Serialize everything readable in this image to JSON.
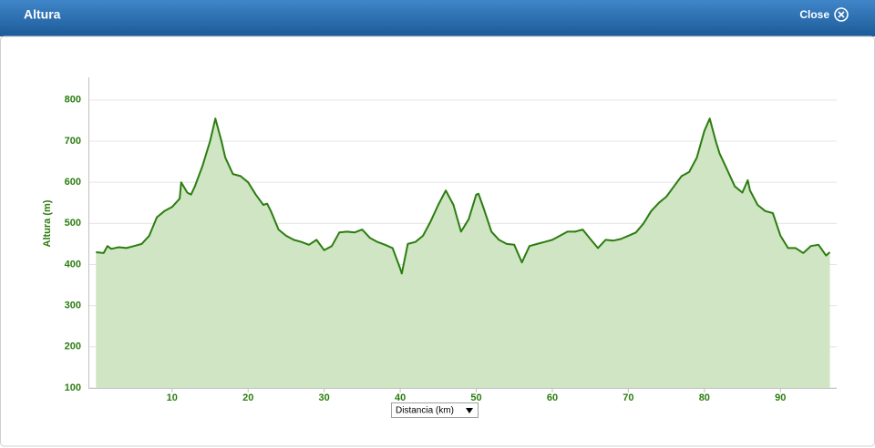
{
  "header": {
    "title": "Altura",
    "close": "Close"
  },
  "chart_data": {
    "type": "area",
    "y_label": "Altura (m)",
    "x_label": "Distancia (km)",
    "color": "#2b7d10",
    "fill_color": "#cfe5c3",
    "grid": true,
    "xlim": [
      -1,
      97.4
    ],
    "ylim": [
      100,
      855
    ],
    "xticks": [
      10,
      20,
      30,
      40,
      50,
      60,
      70,
      80,
      90
    ],
    "yticks": [
      100,
      200,
      300,
      400,
      500,
      600,
      700,
      800
    ],
    "x": [
      0,
      1,
      1.5,
      2,
      3,
      4,
      5,
      6,
      7,
      8,
      9,
      10,
      11,
      11.2,
      12,
      12.5,
      13,
      14,
      15,
      15.7,
      16.5,
      17,
      18,
      19,
      20,
      21,
      22,
      22.5,
      23,
      24,
      25,
      26,
      27,
      28,
      29,
      30,
      31,
      32,
      33,
      34,
      35,
      36,
      37,
      38,
      39,
      40,
      40.2,
      41,
      42,
      43,
      44,
      45,
      46,
      47,
      48,
      49,
      50,
      50.3,
      51,
      52,
      53,
      54,
      55,
      56,
      57,
      58,
      59,
      60,
      61,
      62,
      63,
      64,
      65,
      66,
      67,
      68,
      69,
      70,
      71,
      72,
      73,
      74,
      75,
      76,
      77,
      78,
      79,
      80,
      80.7,
      81.5,
      82,
      83,
      84,
      85,
      85.7,
      86,
      87,
      88,
      89,
      90,
      91,
      92,
      93,
      94,
      95,
      96,
      96.5
    ],
    "values": [
      430,
      428,
      445,
      438,
      442,
      440,
      445,
      450,
      470,
      515,
      530,
      540,
      560,
      600,
      575,
      570,
      590,
      640,
      700,
      755,
      700,
      660,
      620,
      615,
      600,
      570,
      545,
      548,
      530,
      485,
      470,
      460,
      455,
      448,
      460,
      435,
      445,
      478,
      480,
      478,
      485,
      465,
      455,
      448,
      440,
      390,
      378,
      450,
      455,
      470,
      505,
      545,
      580,
      545,
      480,
      510,
      570,
      572,
      535,
      480,
      460,
      450,
      448,
      405,
      445,
      450,
      455,
      460,
      470,
      480,
      480,
      485,
      462,
      440,
      460,
      458,
      462,
      470,
      478,
      500,
      530,
      550,
      565,
      590,
      615,
      625,
      660,
      725,
      755,
      700,
      670,
      630,
      590,
      575,
      605,
      580,
      545,
      530,
      525,
      470,
      440,
      440,
      428,
      445,
      448,
      422,
      430
    ]
  }
}
